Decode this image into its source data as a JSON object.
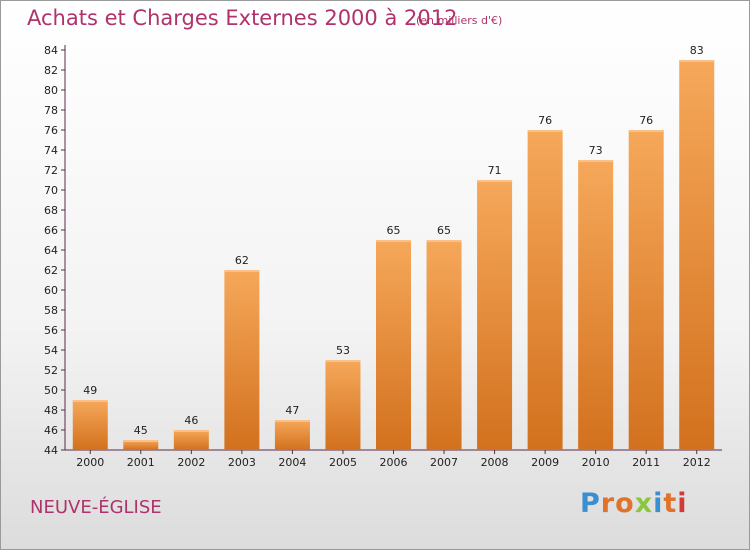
{
  "title": "Achats et Charges Externes 2000 à 2012",
  "subtitle": "(en milliers d'€)",
  "commune": "NEUVE-ÉGLISE",
  "brand": {
    "name": "Proxiti",
    "letters": [
      "P",
      "r",
      "o",
      "x",
      "i",
      "t",
      "i"
    ],
    "colors": [
      "#3a8fd0",
      "#e0722a",
      "#e0722a",
      "#8cc63f",
      "#3a8fd0",
      "#e0722a",
      "#d23a3a"
    ]
  },
  "colors": {
    "title": "#b0326d",
    "bar_light": "#f6a85a",
    "bar_dark": "#d2711e",
    "axis": "#5c2a48"
  },
  "chart_data": {
    "type": "bar",
    "categories": [
      "2000",
      "2001",
      "2002",
      "2003",
      "2004",
      "2005",
      "2006",
      "2007",
      "2008",
      "2009",
      "2010",
      "2011",
      "2012"
    ],
    "values": [
      49,
      45,
      46,
      62,
      47,
      53,
      65,
      65,
      71,
      76,
      73,
      76,
      83
    ],
    "title": "Achats et Charges Externes 2000 à 2012",
    "ylim": [
      44,
      84
    ],
    "yticks": [
      44,
      46,
      48,
      50,
      52,
      54,
      56,
      58,
      60,
      62,
      64,
      66,
      68,
      70,
      72,
      74,
      76,
      78,
      80,
      82,
      84
    ],
    "grid": false,
    "data_labels": true
  }
}
